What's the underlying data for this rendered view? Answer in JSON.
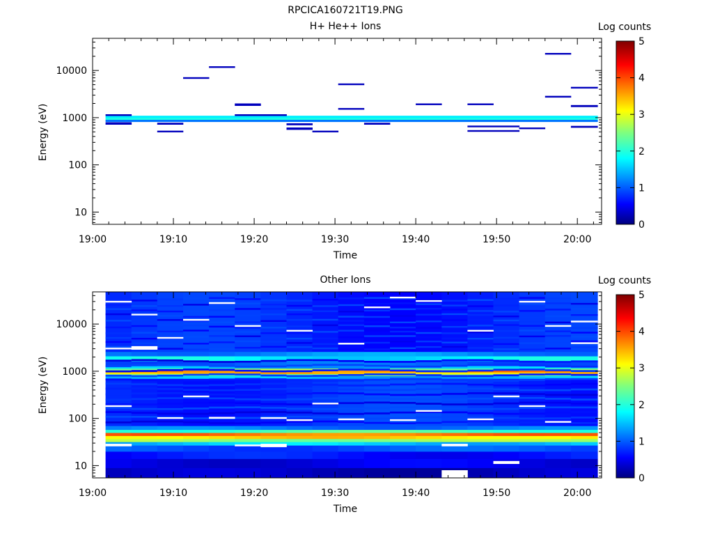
{
  "figure_title": "RPCICA160721T19.PNG",
  "colorbar_label": "Log counts",
  "colorbar_ticks": [
    "0",
    "1",
    "2",
    "3",
    "4",
    "5"
  ],
  "colors": {
    "scale": [
      "#00007f",
      "#0000ff",
      "#007fff",
      "#00ffff",
      "#7fff7f",
      "#ffff00",
      "#ff7f00",
      "#ff0000",
      "#7f0000"
    ]
  },
  "chart_data": [
    {
      "type": "heatmap",
      "title": "H+ He++ Ions",
      "xlabel": "Time",
      "ylabel": "Energy (eV)",
      "x_tick_labels": [
        "19:00",
        "19:10",
        "19:20",
        "19:30",
        "19:40",
        "19:50",
        "20:00"
      ],
      "y_tick_labels": [
        "10",
        "100",
        "1000",
        "10000"
      ],
      "x_range_min": [
        0,
        63
      ],
      "y_scale": "log",
      "y_range_eV": [
        5.5,
        48000
      ],
      "z_range_log_counts": [
        0,
        5
      ],
      "time_bins_min": [
        [
          1.6,
          4.8
        ],
        [
          4.8,
          8
        ],
        [
          8,
          11.2
        ],
        [
          11.2,
          14.4
        ],
        [
          14.4,
          17.6
        ],
        [
          17.6,
          20.8
        ],
        [
          20.8,
          24
        ],
        [
          24,
          27.2
        ],
        [
          27.2,
          30.4
        ],
        [
          30.4,
          33.6
        ],
        [
          33.6,
          36.8
        ],
        [
          36.8,
          40
        ],
        [
          40,
          43.2
        ],
        [
          43.2,
          46.4
        ],
        [
          46.4,
          49.6
        ],
        [
          49.6,
          52.8
        ],
        [
          52.8,
          56
        ],
        [
          56,
          59.2
        ],
        [
          59.2,
          62.5
        ]
      ],
      "cells": [
        {
          "t": [
            1.6,
            62.5
          ],
          "e": [
            900,
            1000
          ],
          "z": 2.0
        },
        {
          "t": [
            1.6,
            62.5
          ],
          "e": [
            1000,
            1100
          ],
          "z": 1.8
        },
        {
          "t": [
            1.6,
            62.5
          ],
          "e": [
            820,
            900
          ],
          "z": 1.2
        },
        {
          "t": [
            1.6,
            4.8
          ],
          "e": [
            1100,
            1180
          ],
          "z": 0.3
        },
        {
          "t": [
            1.6,
            4.8
          ],
          "e": [
            720,
            800
          ],
          "z": 0.3
        },
        {
          "t": [
            8,
            11.2
          ],
          "e": [
            720,
            780
          ],
          "z": 0.3
        },
        {
          "t": [
            8,
            11.2
          ],
          "e": [
            500,
            530
          ],
          "z": 0.3
        },
        {
          "t": [
            11.2,
            14.4
          ],
          "e": [
            6800,
            7200
          ],
          "z": 0.3
        },
        {
          "t": [
            14.4,
            17.6
          ],
          "e": [
            11700,
            12300
          ],
          "z": 0.3
        },
        {
          "t": [
            17.6,
            20.8
          ],
          "e": [
            1800,
            2000
          ],
          "z": 0.3
        },
        {
          "t": [
            17.6,
            24
          ],
          "e": [
            1100,
            1180
          ],
          "z": 0.3
        },
        {
          "t": [
            24,
            27.2
          ],
          "e": [
            700,
            760
          ],
          "z": 0.3
        },
        {
          "t": [
            24,
            27.2
          ],
          "e": [
            560,
            620
          ],
          "z": 0.3
        },
        {
          "t": [
            27.2,
            30.4
          ],
          "e": [
            500,
            530
          ],
          "z": 0.3
        },
        {
          "t": [
            30.4,
            33.6
          ],
          "e": [
            5000,
            5300
          ],
          "z": 0.3
        },
        {
          "t": [
            30.4,
            33.6
          ],
          "e": [
            1500,
            1600
          ],
          "z": 0.3
        },
        {
          "t": [
            33.6,
            36.8
          ],
          "e": [
            720,
            780
          ],
          "z": 0.3
        },
        {
          "t": [
            40,
            43.2
          ],
          "e": [
            1900,
            2000
          ],
          "z": 0.3
        },
        {
          "t": [
            46.4,
            49.6
          ],
          "e": [
            1900,
            2000
          ],
          "z": 0.3
        },
        {
          "t": [
            46.4,
            52.8
          ],
          "e": [
            640,
            680
          ],
          "z": 0.3
        },
        {
          "t": [
            46.4,
            52.8
          ],
          "e": [
            510,
            545
          ],
          "z": 0.3
        },
        {
          "t": [
            52.8,
            56
          ],
          "e": [
            580,
            620
          ],
          "z": 0.3
        },
        {
          "t": [
            56,
            59.2
          ],
          "e": [
            22000,
            23500
          ],
          "z": 0.3
        },
        {
          "t": [
            56,
            59.2
          ],
          "e": [
            2700,
            2900
          ],
          "z": 0.3
        },
        {
          "t": [
            59.2,
            62.5
          ],
          "e": [
            4200,
            4500
          ],
          "z": 0.3
        },
        {
          "t": [
            59.2,
            62.5
          ],
          "e": [
            1700,
            1850
          ],
          "z": 0.3
        },
        {
          "t": [
            59.2,
            62.5
          ],
          "e": [
            620,
            670
          ],
          "z": 0.3
        }
      ]
    },
    {
      "type": "heatmap",
      "title": "Other Ions",
      "xlabel": "Time",
      "ylabel": "Energy (eV)",
      "x_tick_labels": [
        "19:00",
        "19:10",
        "19:20",
        "19:30",
        "19:40",
        "19:50",
        "20:00"
      ],
      "y_tick_labels": [
        "10",
        "100",
        "1000",
        "10000"
      ],
      "x_range_min": [
        0,
        63
      ],
      "y_scale": "log",
      "y_range_eV": [
        5.5,
        48000
      ],
      "z_range_log_counts": [
        0,
        5
      ],
      "columns_min": [
        [
          1.6,
          4.8
        ],
        [
          4.8,
          8
        ],
        [
          8,
          11.2
        ],
        [
          11.2,
          14.4
        ],
        [
          14.4,
          17.6
        ],
        [
          17.6,
          20.8
        ],
        [
          20.8,
          24
        ],
        [
          24,
          27.2
        ],
        [
          27.2,
          30.4
        ],
        [
          30.4,
          33.6
        ],
        [
          33.6,
          36.8
        ],
        [
          36.8,
          40
        ],
        [
          40,
          43.2
        ],
        [
          43.2,
          46.4
        ],
        [
          46.4,
          49.6
        ],
        [
          49.6,
          52.8
        ],
        [
          52.8,
          56
        ],
        [
          56,
          59.2
        ],
        [
          59.2,
          62.5
        ]
      ],
      "band_profile": [
        {
          "e": [
            5.5,
            9
          ],
          "z": 0.3
        },
        {
          "e": [
            9,
            14
          ],
          "z": 0.5
        },
        {
          "e": [
            14,
            20
          ],
          "z": 0.7
        },
        {
          "e": [
            20,
            27
          ],
          "z": 1.0
        },
        {
          "e": [
            27,
            32
          ],
          "z": 1.6
        },
        {
          "e": [
            32,
            37
          ],
          "z": 2.6
        },
        {
          "e": [
            37,
            43
          ],
          "z": 3.3
        },
        {
          "e": [
            43,
            50
          ],
          "z": 3.8
        },
        {
          "e": [
            50,
            58
          ],
          "z": 2.2
        },
        {
          "e": [
            58,
            70
          ],
          "z": 1.2
        },
        {
          "e": [
            70,
            700
          ],
          "z": 0.85
        },
        {
          "e": [
            700,
            800
          ],
          "z": 1.5
        },
        {
          "e": [
            800,
            880
          ],
          "z": 2.4
        },
        {
          "e": [
            880,
            960
          ],
          "z": 3.4
        },
        {
          "e": [
            960,
            1050
          ],
          "z": 3.7
        },
        {
          "e": [
            1050,
            1150
          ],
          "z": 2.6
        },
        {
          "e": [
            1150,
            1300
          ],
          "z": 1.5
        },
        {
          "e": [
            1300,
            1650
          ],
          "z": 1.1
        },
        {
          "e": [
            1650,
            2100
          ],
          "z": 1.8
        },
        {
          "e": [
            2100,
            2600
          ],
          "z": 1.3
        },
        {
          "e": [
            2600,
            48000
          ],
          "z": 0.8
        }
      ],
      "empty_cells": [
        {
          "t": [
            1.6,
            4.8
          ],
          "e": [
            26,
            29
          ]
        },
        {
          "t": [
            1.6,
            4.8
          ],
          "e": [
            180,
            190
          ]
        },
        {
          "t": [
            1.6,
            4.8
          ],
          "e": [
            3000,
            3150
          ]
        },
        {
          "t": [
            1.6,
            4.8
          ],
          "e": [
            29000,
            31000
          ]
        },
        {
          "t": [
            4.8,
            8
          ],
          "e": [
            2900,
            3400
          ]
        },
        {
          "t": [
            4.8,
            8
          ],
          "e": [
            15500,
            16500
          ]
        },
        {
          "t": [
            8,
            11.2
          ],
          "e": [
            100,
            106
          ]
        },
        {
          "t": [
            8,
            11.2
          ],
          "e": [
            5000,
            5300
          ]
        },
        {
          "t": [
            11.2,
            14.4
          ],
          "e": [
            12000,
            12800
          ]
        },
        {
          "t": [
            11.2,
            14.4
          ],
          "e": [
            290,
            305
          ]
        },
        {
          "t": [
            14.4,
            17.6
          ],
          "e": [
            100,
            108
          ]
        },
        {
          "t": [
            14.4,
            17.6
          ],
          "e": [
            27000,
            29000
          ]
        },
        {
          "t": [
            17.6,
            20.8
          ],
          "e": [
            26,
            28
          ]
        },
        {
          "t": [
            17.6,
            20.8
          ],
          "e": [
            9000,
            9500
          ]
        },
        {
          "t": [
            20.8,
            24
          ],
          "e": [
            25,
            29
          ]
        },
        {
          "t": [
            20.8,
            24
          ],
          "e": [
            100,
            106
          ]
        },
        {
          "t": [
            24,
            27.2
          ],
          "e": [
            90,
            96
          ]
        },
        {
          "t": [
            24,
            27.2
          ],
          "e": [
            7000,
            7500
          ]
        },
        {
          "t": [
            27.2,
            30.4
          ],
          "e": [
            205,
            215
          ]
        },
        {
          "t": [
            30.4,
            33.6
          ],
          "e": [
            3800,
            4000
          ]
        },
        {
          "t": [
            30.4,
            33.6
          ],
          "e": [
            95,
            100
          ]
        },
        {
          "t": [
            33.6,
            36.8
          ],
          "e": [
            22000,
            23500
          ]
        },
        {
          "t": [
            36.8,
            40
          ],
          "e": [
            90,
            96
          ]
        },
        {
          "t": [
            36.8,
            40
          ],
          "e": [
            36000,
            38000
          ]
        },
        {
          "t": [
            40,
            43.2
          ],
          "e": [
            30000,
            32000
          ]
        },
        {
          "t": [
            40,
            43.2
          ],
          "e": [
            140,
            150
          ]
        },
        {
          "t": [
            43.2,
            46.4
          ],
          "e": [
            5.5,
            8
          ]
        },
        {
          "t": [
            43.2,
            46.4
          ],
          "e": [
            26,
            29
          ]
        },
        {
          "t": [
            46.4,
            49.6
          ],
          "e": [
            95,
            100
          ]
        },
        {
          "t": [
            46.4,
            49.6
          ],
          "e": [
            7000,
            7500
          ]
        },
        {
          "t": [
            49.6,
            52.8
          ],
          "e": [
            11,
            12.5
          ]
        },
        {
          "t": [
            49.6,
            52.8
          ],
          "e": [
            290,
            305
          ]
        },
        {
          "t": [
            52.8,
            56
          ],
          "e": [
            180,
            190
          ]
        },
        {
          "t": [
            52.8,
            56
          ],
          "e": [
            29000,
            31000
          ]
        },
        {
          "t": [
            56,
            59.2
          ],
          "e": [
            84,
            88
          ]
        },
        {
          "t": [
            56,
            59.2
          ],
          "e": [
            9000,
            9500
          ]
        },
        {
          "t": [
            59.2,
            62.5
          ],
          "e": [
            11000,
            11800
          ]
        },
        {
          "t": [
            59.2,
            62.5
          ],
          "e": [
            3900,
            4100
          ]
        }
      ]
    }
  ]
}
